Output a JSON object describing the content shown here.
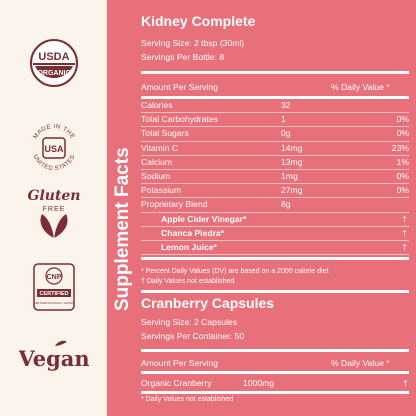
{
  "badges": {
    "usda_top": "USDA",
    "usda_bottom": "ORGANIC",
    "usa_top": "MADE IN THE",
    "usa_bottom": "UNITED STATES",
    "usa_mark": "USA",
    "gluten_main": "Gluten",
    "gluten_sub": "FREE",
    "cnp_mark": "CNP",
    "cnp_certified": "CERTIFIED",
    "cnp_small": "CERTIFIED NATURALLY GROWN",
    "vegan": "Vegan"
  },
  "panel_title": "Supplement Facts",
  "kidney": {
    "title": "Kidney Complete",
    "serving_size": "Serving Size: 2 tbsp (30ml)",
    "servings": "Servings Per Bottle: 8",
    "header_left": "Amount Per Serving",
    "header_right": "% Daily Value *",
    "rows": [
      {
        "name": "Calories",
        "amount": "32",
        "dv": ""
      },
      {
        "name": "Total Carbohydrates",
        "amount": "1",
        "dv": "0%"
      },
      {
        "name": "Total Sugars",
        "amount": "0g",
        "dv": "0%"
      },
      {
        "name": "Vitamin C",
        "amount": "14mg",
        "dv": "23%"
      },
      {
        "name": "Calcium",
        "amount": "13mg",
        "dv": "1%"
      },
      {
        "name": "Sodium",
        "amount": "1mg",
        "dv": "0%"
      },
      {
        "name": "Potassium",
        "amount": "27mg",
        "dv": "0%"
      },
      {
        "name": "Proprietary Blend",
        "amount": "8g",
        "dv": ""
      }
    ],
    "blend": [
      {
        "name": "Apple Cider Vinegar*",
        "dv": "†"
      },
      {
        "name": "Chanca Piedra*",
        "dv": "†"
      },
      {
        "name": "Lemon Juice*",
        "dv": "†"
      }
    ],
    "foot1": "* Percent Daily Values (DV) are based on a 2000 calorie diet",
    "foot2": "† Daily Values not established"
  },
  "cranberry": {
    "title": "Cranberry Capsules",
    "serving_size": "Serving Size: 2 Capsules",
    "servings": "Servings Per Container: 50",
    "header_left": "Amount Per Serving",
    "header_right": "% Daily Value *",
    "row_name": "Organic Cranberry",
    "row_amount": "1000mg",
    "row_dv": "†",
    "foot": "* Daily Values not established"
  }
}
